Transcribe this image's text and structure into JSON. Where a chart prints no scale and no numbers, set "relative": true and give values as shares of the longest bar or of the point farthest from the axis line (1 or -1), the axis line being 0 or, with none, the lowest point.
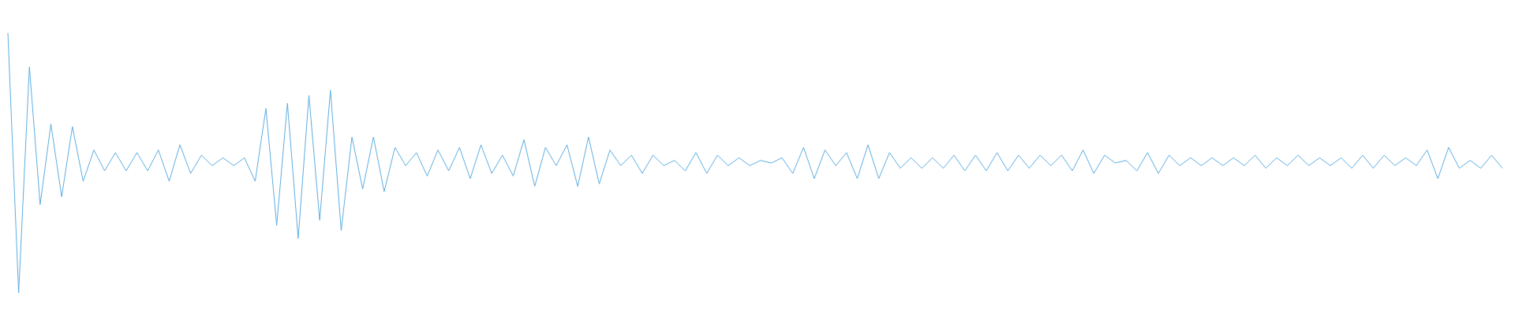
{
  "chart_data": {
    "type": "line",
    "relative": true,
    "line_style": "solid",
    "marker": "none",
    "categories": [
      null,
      null,
      null,
      null,
      null,
      null,
      null,
      null,
      null,
      null,
      null,
      null,
      null,
      null,
      null,
      null,
      null,
      null,
      null,
      null,
      null,
      null,
      null,
      null,
      null,
      null,
      null,
      null,
      null,
      null,
      null,
      null,
      null,
      null,
      null,
      null,
      null,
      null,
      null,
      null,
      null,
      null,
      null,
      null,
      null,
      null,
      null,
      null,
      null,
      null,
      null,
      null,
      null,
      null,
      null,
      null,
      null,
      null,
      null,
      null,
      null,
      null,
      null,
      null,
      null,
      null,
      null,
      null,
      null,
      null,
      null,
      null,
      null,
      null,
      null,
      null,
      null,
      null,
      null,
      null,
      null,
      null,
      null,
      null,
      null,
      null,
      null,
      null,
      null,
      null,
      null,
      null,
      null,
      null,
      null,
      null,
      null,
      null,
      null,
      null,
      null,
      null,
      null,
      null,
      null,
      null,
      null,
      null,
      null,
      null,
      null,
      null,
      null,
      null,
      null,
      null,
      null,
      null,
      null,
      null,
      null,
      null,
      null,
      null,
      null,
      null,
      null,
      null,
      null,
      null,
      null,
      null,
      null,
      null,
      null,
      null,
      null,
      null,
      null,
      null
    ],
    "series": [
      {
        "color": "#5dade2",
        "values": [
          1,
          0,
          0.87,
          0.34,
          0.65,
          0.37,
          0.64,
          0.43,
          0.55,
          0.47,
          0.54,
          0.47,
          0.54,
          0.47,
          0.55,
          0.43,
          0.57,
          0.46,
          0.53,
          0.49,
          0.52,
          0.49,
          0.52,
          0.43,
          0.71,
          0.26,
          0.73,
          0.21,
          0.76,
          0.28,
          0.78,
          0.24,
          0.6,
          0.4,
          0.6,
          0.39,
          0.56,
          0.49,
          0.54,
          0.45,
          0.55,
          0.47,
          0.56,
          0.44,
          0.57,
          0.46,
          0.53,
          0.45,
          0.59,
          0.41,
          0.56,
          0.49,
          0.57,
          0.41,
          0.6,
          0.42,
          0.55,
          0.49,
          0.53,
          0.46,
          0.53,
          0.49,
          0.51,
          0.47,
          0.54,
          0.46,
          0.53,
          0.49,
          0.52,
          0.49,
          0.51,
          0.5,
          0.52,
          0.46,
          0.56,
          0.44,
          0.55,
          0.49,
          0.54,
          0.44,
          0.57,
          0.44,
          0.54,
          0.48,
          0.52,
          0.48,
          0.52,
          0.48,
          0.53,
          0.47,
          0.53,
          0.47,
          0.54,
          0.47,
          0.53,
          0.48,
          0.53,
          0.49,
          0.53,
          0.47,
          0.55,
          0.46,
          0.53,
          0.5,
          0.51,
          0.47,
          0.54,
          0.46,
          0.53,
          0.49,
          0.52,
          0.49,
          0.52,
          0.49,
          0.52,
          0.49,
          0.53,
          0.48,
          0.52,
          0.49,
          0.53,
          0.49,
          0.52,
          0.49,
          0.52,
          0.48,
          0.53,
          0.48,
          0.53,
          0.49,
          0.52,
          0.49,
          0.55,
          0.44,
          0.56,
          0.48,
          0.51,
          0.48,
          0.53,
          0.48
        ]
      }
    ]
  }
}
